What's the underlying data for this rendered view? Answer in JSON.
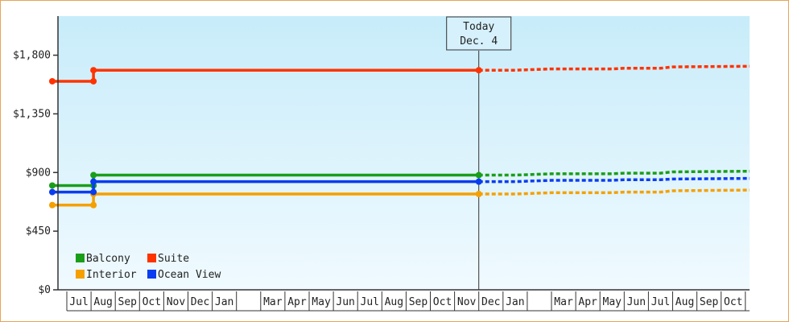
{
  "chart_data": {
    "type": "line",
    "title": "",
    "xlabel": "",
    "ylabel": "",
    "ylim": [
      0,
      2100
    ],
    "y_ticks": [
      {
        "value": 0,
        "label": "$0"
      },
      {
        "value": 450,
        "label": "$450"
      },
      {
        "value": 900,
        "label": "$900"
      },
      {
        "value": 1350,
        "label": "$1,350"
      },
      {
        "value": 1800,
        "label": "$1,800"
      }
    ],
    "x_range": [
      0,
      28.5
    ],
    "months": [
      {
        "pos": 0,
        "label": "Jul"
      },
      {
        "pos": 1,
        "label": "Aug"
      },
      {
        "pos": 2,
        "label": "Sep"
      },
      {
        "pos": 3,
        "label": "Oct"
      },
      {
        "pos": 4,
        "label": "Nov"
      },
      {
        "pos": 5,
        "label": "Dec"
      },
      {
        "pos": 6,
        "label": "Jan"
      },
      {
        "pos": 7,
        "label": ""
      },
      {
        "pos": 8,
        "label": "Mar"
      },
      {
        "pos": 9,
        "label": "Apr"
      },
      {
        "pos": 10,
        "label": "May"
      },
      {
        "pos": 11,
        "label": "Jun"
      },
      {
        "pos": 12,
        "label": "Jul"
      },
      {
        "pos": 13,
        "label": "Aug"
      },
      {
        "pos": 14,
        "label": "Sep"
      },
      {
        "pos": 15,
        "label": "Oct"
      },
      {
        "pos": 16,
        "label": "Nov"
      },
      {
        "pos": 17,
        "label": "Dec"
      },
      {
        "pos": 18,
        "label": "Jan"
      },
      {
        "pos": 19,
        "label": ""
      },
      {
        "pos": 20,
        "label": "Mar"
      },
      {
        "pos": 21,
        "label": "Apr"
      },
      {
        "pos": 22,
        "label": "May"
      },
      {
        "pos": 23,
        "label": "Jun"
      },
      {
        "pos": 24,
        "label": "Jul"
      },
      {
        "pos": 25,
        "label": "Aug"
      },
      {
        "pos": 26,
        "label": "Sep"
      },
      {
        "pos": 27,
        "label": "Oct"
      }
    ],
    "today": {
      "pos": 17,
      "line1": "Today",
      "line2": "Dec. 4"
    },
    "series": [
      {
        "name": "Balcony",
        "color": "#1a9e1a",
        "history": [
          [
            -0.6,
            800
          ],
          [
            1.1,
            800
          ],
          [
            1.1,
            880
          ],
          [
            17.0,
            880
          ]
        ],
        "markers": [
          [
            -0.6,
            800
          ],
          [
            1.1,
            800
          ],
          [
            1.1,
            880
          ],
          [
            17.0,
            880
          ]
        ],
        "forecast": [
          [
            17.0,
            880
          ],
          [
            18.5,
            880
          ],
          [
            20.0,
            890
          ],
          [
            22.5,
            890
          ],
          [
            23.0,
            895
          ],
          [
            24.5,
            895
          ],
          [
            25.0,
            905
          ],
          [
            28.5,
            910
          ]
        ]
      },
      {
        "name": "Suite",
        "color": "#ff3300",
        "history": [
          [
            -0.6,
            1600
          ],
          [
            1.1,
            1600
          ],
          [
            1.1,
            1685
          ],
          [
            17.0,
            1685
          ]
        ],
        "markers": [
          [
            -0.6,
            1600
          ],
          [
            1.1,
            1600
          ],
          [
            1.1,
            1685
          ],
          [
            17.0,
            1685
          ]
        ],
        "forecast": [
          [
            17.0,
            1685
          ],
          [
            18.5,
            1685
          ],
          [
            20.0,
            1695
          ],
          [
            22.5,
            1695
          ],
          [
            23.0,
            1700
          ],
          [
            24.5,
            1700
          ],
          [
            25.0,
            1710
          ],
          [
            28.5,
            1715
          ]
        ]
      },
      {
        "name": "Interior",
        "color": "#f5a000",
        "history": [
          [
            -0.6,
            650
          ],
          [
            1.1,
            650
          ],
          [
            1.1,
            735
          ],
          [
            17.0,
            735
          ]
        ],
        "markers": [
          [
            -0.6,
            650
          ],
          [
            1.1,
            650
          ],
          [
            1.1,
            735
          ],
          [
            17.0,
            735
          ]
        ],
        "forecast": [
          [
            17.0,
            735
          ],
          [
            18.5,
            735
          ],
          [
            20.0,
            745
          ],
          [
            22.5,
            745
          ],
          [
            23.0,
            750
          ],
          [
            24.5,
            750
          ],
          [
            25.0,
            760
          ],
          [
            28.5,
            765
          ]
        ]
      },
      {
        "name": "Ocean View",
        "color": "#0a3cf0",
        "history": [
          [
            -0.6,
            750
          ],
          [
            1.1,
            750
          ],
          [
            1.1,
            830
          ],
          [
            17.0,
            830
          ]
        ],
        "markers": [
          [
            -0.6,
            750
          ],
          [
            1.1,
            750
          ],
          [
            1.1,
            830
          ],
          [
            17.0,
            830
          ]
        ],
        "forecast": [
          [
            17.0,
            830
          ],
          [
            18.5,
            830
          ],
          [
            20.0,
            840
          ],
          [
            22.5,
            840
          ],
          [
            23.0,
            845
          ],
          [
            24.5,
            845
          ],
          [
            25.0,
            850
          ],
          [
            28.5,
            855
          ]
        ]
      }
    ],
    "legend_placement": "bottom-left",
    "grid": false,
    "colors": {
      "bg_top": "#c8ecfa",
      "bg_bottom": "#f0faff",
      "axis": "#333333",
      "today_line": "#333333"
    }
  }
}
